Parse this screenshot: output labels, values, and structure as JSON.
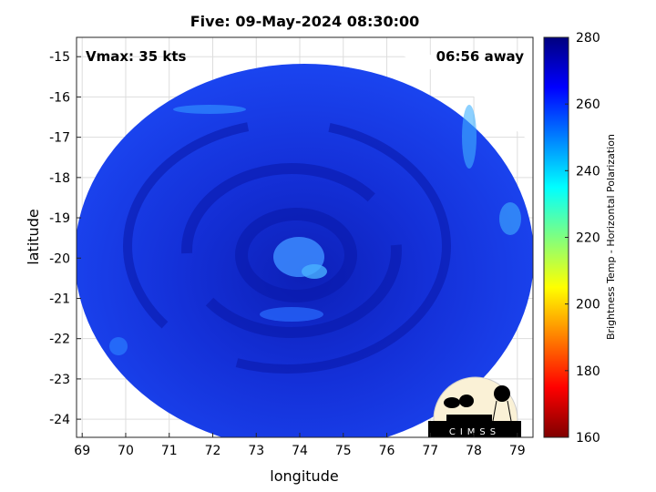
{
  "chart_data": {
    "type": "heatmap",
    "title": "Five: 09-May-2024 08:30:00",
    "xlabel": "longitude",
    "ylabel": "latitude",
    "xlim": [
      68.87,
      79.36
    ],
    "ylim": [
      -24.45,
      -14.52
    ],
    "xticks": [
      69,
      70,
      71,
      72,
      73,
      74,
      75,
      76,
      77,
      78,
      79
    ],
    "yticks": [
      -15,
      -16,
      -17,
      -18,
      -19,
      -20,
      -21,
      -22,
      -23,
      -24
    ],
    "grid": true,
    "annotations": {
      "vmax": "Vmax: 35 kts",
      "time_away": "06:56 away"
    },
    "storm_center": {
      "lon": 73.9,
      "lat": -19.9
    },
    "colorbar": {
      "label": "Brightness Temp - Horizontal Polarization",
      "range": [
        160,
        280
      ],
      "ticks": [
        160,
        180,
        200,
        220,
        240,
        260,
        280
      ],
      "colormap": "jet",
      "placement": "right"
    }
  },
  "logo": {
    "text": "CIMSS"
  },
  "colors": {
    "disk_base": "#1a3cf0",
    "disk_dark": "#0a1ab4",
    "disk_light": "#2a6cff",
    "warm_patch": "#3fb0ff"
  }
}
